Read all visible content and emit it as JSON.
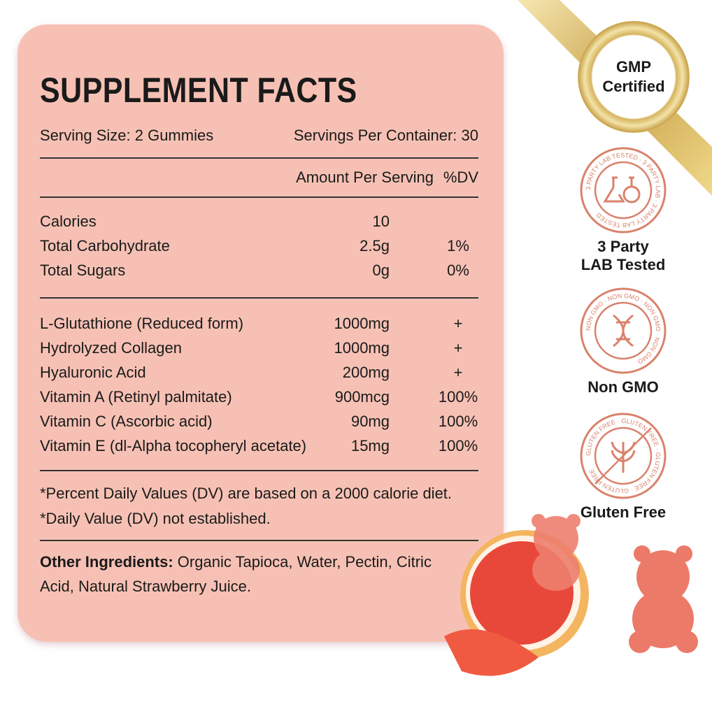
{
  "title": "SUPPLEMENT FACTS",
  "serving_size": "Serving Size: 2 Gummies",
  "servings_per_container": "Servings Per Container: 30",
  "header": {
    "amount": "Amount Per Serving",
    "dv": "%DV"
  },
  "basics": [
    {
      "name": "Calories",
      "amount": "10",
      "dv": ""
    },
    {
      "name": "Total Carbohydrate",
      "amount": "2.5g",
      "dv": "1%"
    },
    {
      "name": "Total Sugars",
      "amount": "0g",
      "dv": "0%"
    }
  ],
  "nutrients": [
    {
      "name": "L-Glutathione (Reduced form)",
      "amount": "1000mg",
      "dv": "+"
    },
    {
      "name": "Hydrolyzed Collagen",
      "amount": "1000mg",
      "dv": "+"
    },
    {
      "name": "Hyaluronic Acid",
      "amount": "200mg",
      "dv": "+"
    },
    {
      "name": "Vitamin A (Retinyl palmitate)",
      "amount": "900mcg",
      "dv": "100%"
    },
    {
      "name": "Vitamin C (Ascorbic acid)",
      "amount": "90mg",
      "dv": "100%"
    },
    {
      "name": "Vitamin E (dl-Alpha tocopheryl acetate)",
      "amount": "15mg",
      "dv": "100%"
    }
  ],
  "footnotes": [
    "*Percent Daily Values (DV) are based on a 2000 calorie diet.",
    "*Daily Value (DV) not established."
  ],
  "other_ingredients": {
    "label": "Other Ingredients:",
    "line1": " Organic Tapioca, Water, Pectin, Citric",
    "line2": "Acid, Natural Strawberry Juice."
  },
  "seal": {
    "line1": "GMP",
    "line2": "Certified"
  },
  "badges": [
    {
      "ring": "3 PARTY LAB TESTED · 3 PARTY LAB · 3 PARTY LAB TESTED",
      "label1": "3 Party",
      "label2": "LAB Tested",
      "icon": "flask-icon"
    },
    {
      "ring": "NON GMO · NON GMO · NON GMO · NON GMO",
      "label1": "Non GMO",
      "label2": "",
      "icon": "dna-icon"
    },
    {
      "ring": "GLUTEN FREE · GLUTEN FREE · GLUTEN FREE · GLUTEN FREE",
      "label1": "Gluten Free",
      "label2": "",
      "icon": "wheat-crossed-icon"
    }
  ],
  "colors": {
    "panel": "#f6c1b4",
    "badge": "#d9826c",
    "gold": "#c9a24a"
  }
}
